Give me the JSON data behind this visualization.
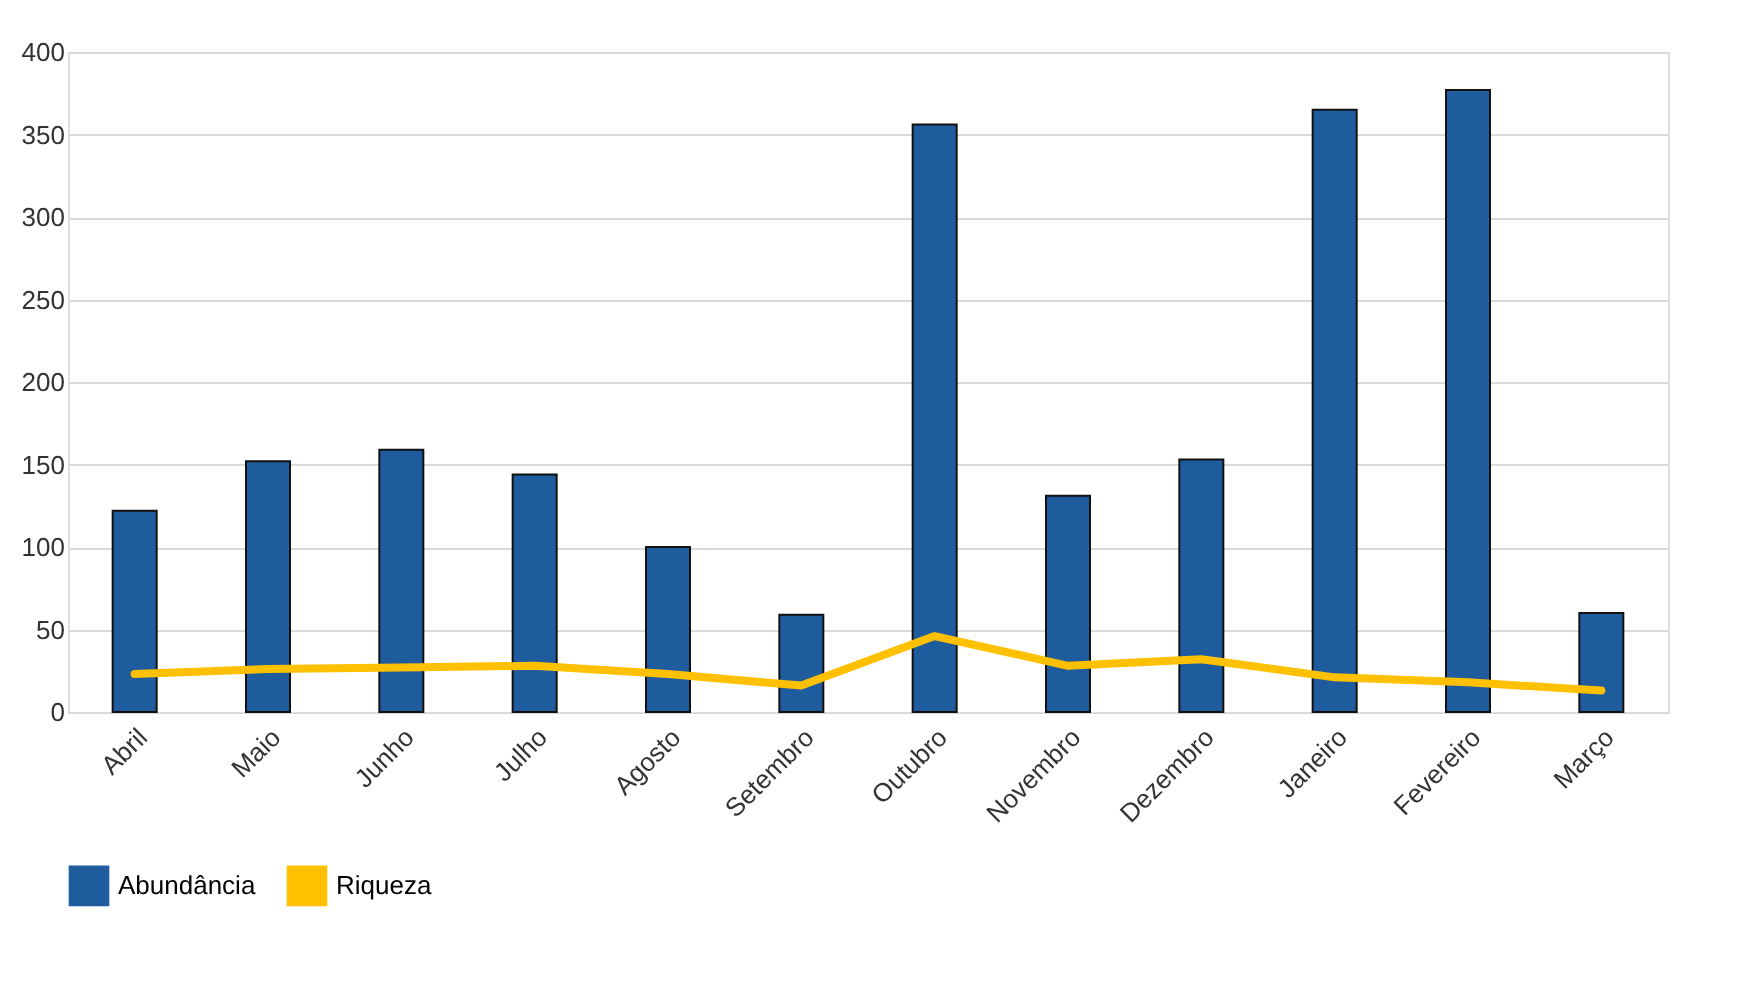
{
  "chart_data": {
    "type": "bar",
    "categories": [
      "Abril",
      "Maio",
      "Junho",
      "Julho",
      "Agosto",
      "Setembro",
      "Outubro",
      "Novembro",
      "Dezembro",
      "Janeiro",
      "Fevereiro",
      "Março"
    ],
    "series": [
      {
        "name": "Abundância",
        "color": "#1f5c9e",
        "values": [
          122,
          152,
          159,
          144,
          100,
          59,
          356,
          131,
          153,
          365,
          377,
          60
        ]
      },
      {
        "name": "Riqueza",
        "type": "line",
        "color": "#ffc000",
        "values": [
          23,
          26,
          27,
          28,
          23,
          16,
          46,
          28,
          32,
          21,
          18,
          13
        ]
      }
    ],
    "ylim": [
      0,
      400
    ],
    "yticks": [
      0,
      50,
      100,
      150,
      200,
      250,
      300,
      350,
      400
    ],
    "grid": "y",
    "legend": "bottom",
    "marker": "none",
    "line_style": "solid"
  }
}
